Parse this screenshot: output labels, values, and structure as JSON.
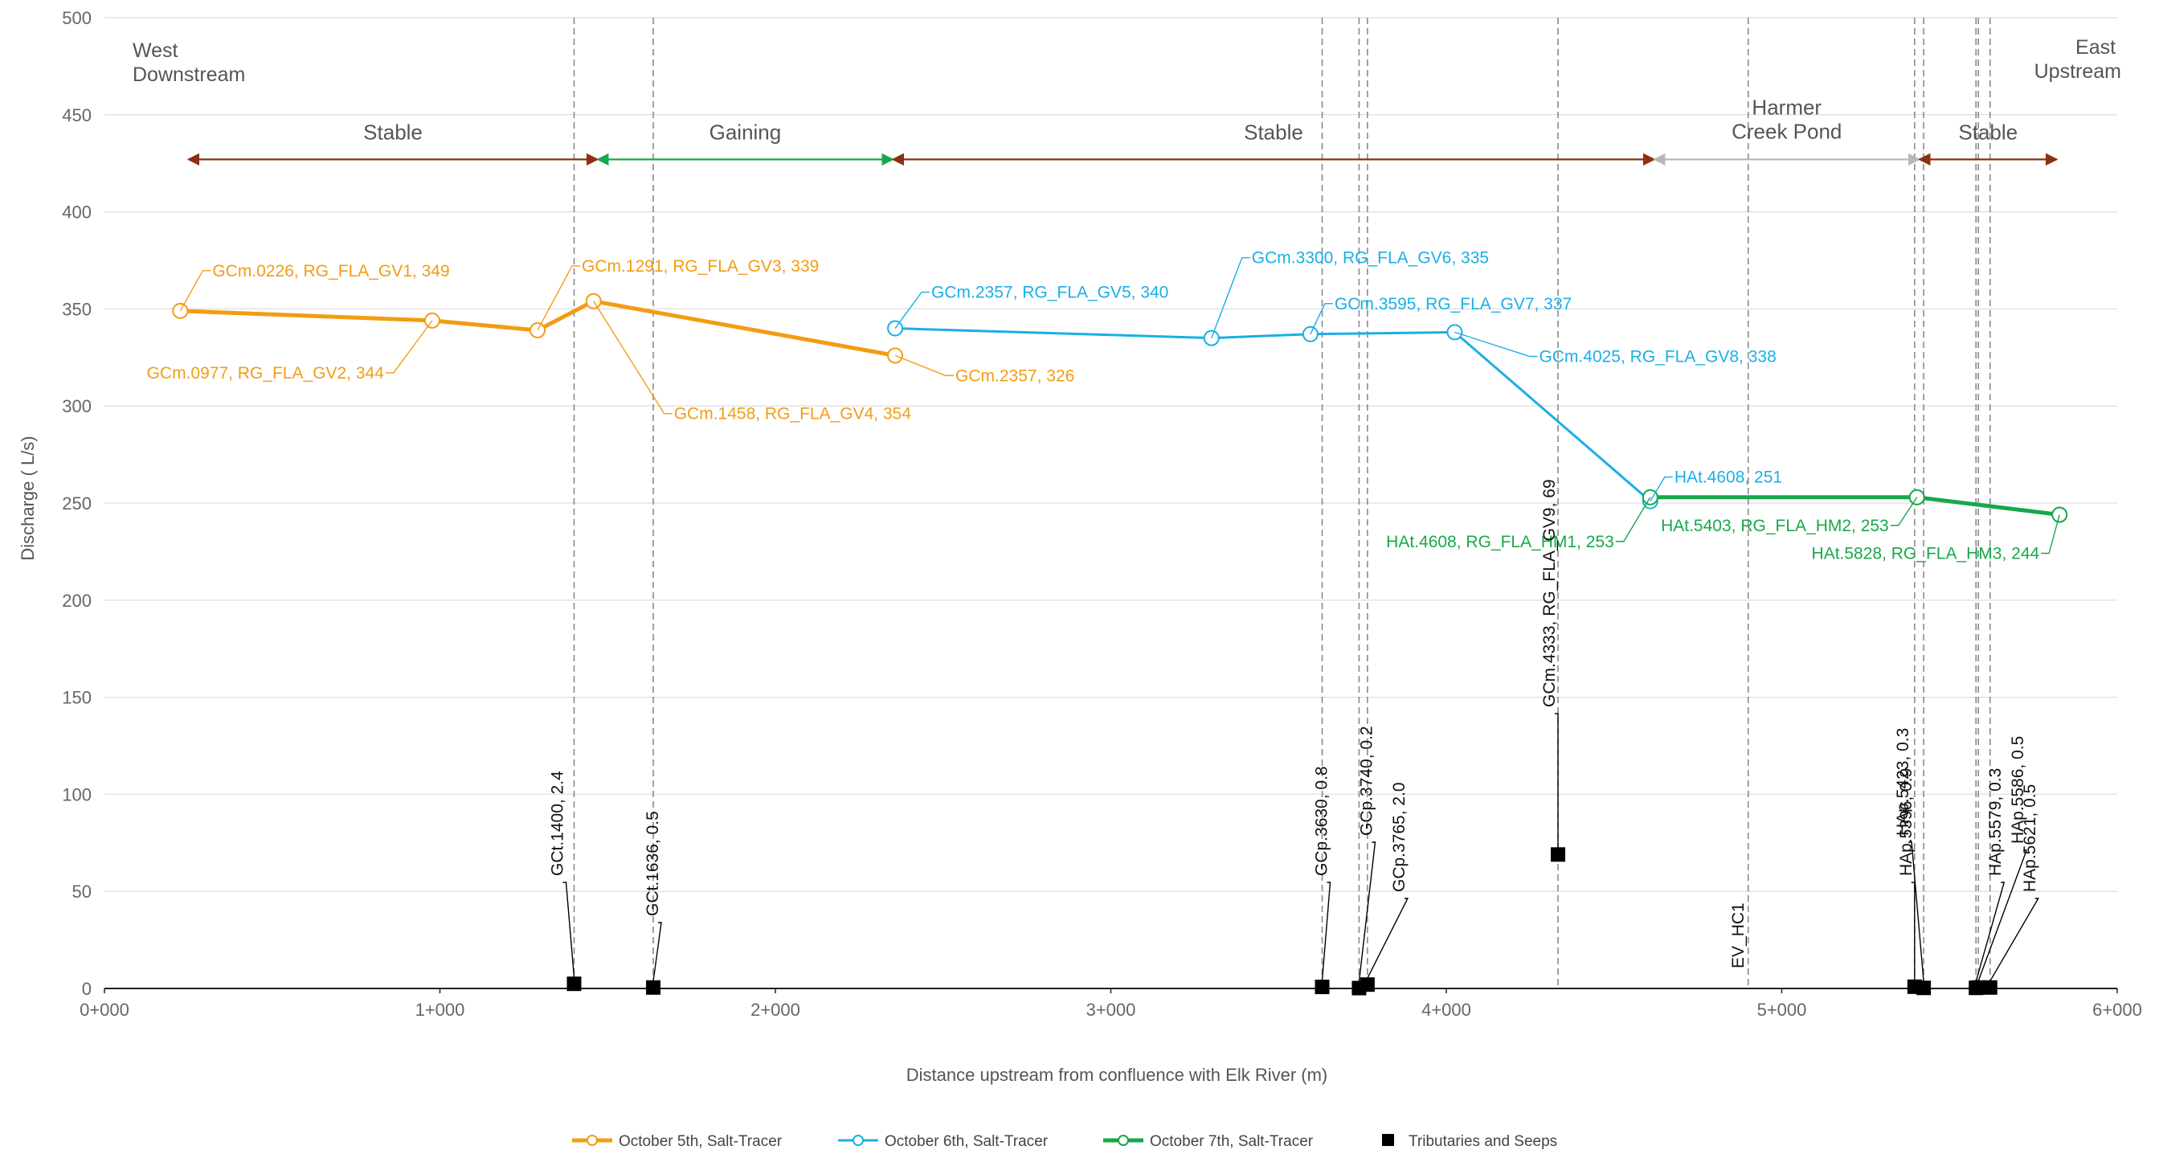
{
  "chart_data": {
    "type": "line",
    "xlabel": "Distance upstream from confluence with Elk River (m)",
    "ylabel": "Discharge ( L/s)",
    "xlim": [
      0,
      6000
    ],
    "ylim": [
      0,
      500
    ],
    "x_ticks": [
      {
        "value": 0,
        "label": "0+000"
      },
      {
        "value": 1000,
        "label": "1+000"
      },
      {
        "value": 2000,
        "label": "2+000"
      },
      {
        "value": 3000,
        "label": "3+000"
      },
      {
        "value": 4000,
        "label": "4+000"
      },
      {
        "value": 5000,
        "label": "5+000"
      },
      {
        "value": 6000,
        "label": "6+000"
      }
    ],
    "y_ticks": [
      0,
      50,
      100,
      150,
      200,
      250,
      300,
      350,
      400,
      450,
      500
    ],
    "grid": "horizontal",
    "legend_position": "bottom",
    "corner_labels": {
      "west": [
        "West",
        "Downstream"
      ],
      "east": [
        "East",
        "Upstream"
      ]
    },
    "colors": {
      "oct5": "#f39c12",
      "oct6": "#1aafe6",
      "oct7": "#17a84a",
      "tributaries": "#000000",
      "stable": "#8b3010",
      "gaining": "#17a84a",
      "pond": "#b8b8b8"
    },
    "series": [
      {
        "name": "October 5th, Salt-Tracer",
        "color": "#f39c12",
        "points": [
          {
            "x": 226,
            "y": 349,
            "label": "GCm.0226, RG_FLA_GV1, 349"
          },
          {
            "x": 977,
            "y": 344,
            "label": "GCm.0977, RG_FLA_GV2, 344"
          },
          {
            "x": 1291,
            "y": 339,
            "label": "GCm.1291, RG_FLA_GV3, 339"
          },
          {
            "x": 1458,
            "y": 354,
            "label": "GCm.1458, RG_FLA_GV4, 354"
          },
          {
            "x": 2357,
            "y": 326,
            "label": "GCm.2357, 326"
          }
        ]
      },
      {
        "name": "October 6th, Salt-Tracer",
        "color": "#1aafe6",
        "points": [
          {
            "x": 2357,
            "y": 340,
            "label": "GCm.2357, RG_FLA_GV5, 340"
          },
          {
            "x": 3300,
            "y": 335,
            "label": "GCm.3300, RG_FLA_GV6, 335"
          },
          {
            "x": 3595,
            "y": 337,
            "label": "GCm.3595, RG_FLA_GV7, 337"
          },
          {
            "x": 4025,
            "y": 338,
            "label": "GCm.4025, RG_FLA_GV8, 338"
          },
          {
            "x": 4608,
            "y": 251,
            "label": "HAt.4608, 251"
          }
        ]
      },
      {
        "name": "October 7th, Salt-Tracer",
        "color": "#17a84a",
        "points": [
          {
            "x": 4608,
            "y": 253,
            "label": "HAt.4608, RG_FLA_HM1, 253"
          },
          {
            "x": 5403,
            "y": 253,
            "label": "HAt.5403, RG_FLA_HM2, 253"
          },
          {
            "x": 5828,
            "y": 244,
            "label": "HAt.5828, RG_FLA_HM3, 244"
          }
        ]
      }
    ],
    "tributaries": {
      "name": "Tributaries and Seeps",
      "points": [
        {
          "x": 1400,
          "y": 2.4,
          "label": "GCt.1400, 2.4"
        },
        {
          "x": 1636,
          "y": 0.5,
          "label": "GCt.1636, 0.5"
        },
        {
          "x": 3630,
          "y": 0.8,
          "label": "GCp.3630, 0.8"
        },
        {
          "x": 3740,
          "y": 0.2,
          "label": "GCp.3740, 0.2"
        },
        {
          "x": 3765,
          "y": 2.0,
          "label": "GCp.3765, 2.0"
        },
        {
          "x": 4333,
          "y": 69,
          "label": "GCm.4333, RG_FLA_GV9, 69"
        },
        {
          "x": 5396,
          "y": 0.9,
          "label": "HAp.5396, 0.9"
        },
        {
          "x": 5423,
          "y": 0.3,
          "label": "HAp.5423, 0.3"
        },
        {
          "x": 5579,
          "y": 0.3,
          "label": "HAp.5579, 0.3"
        },
        {
          "x": 5586,
          "y": 0.5,
          "label": "HAp.5586, 0.5"
        },
        {
          "x": 5621,
          "y": 0.5,
          "label": "HAp.5621, 0.5"
        }
      ]
    },
    "other_markers": [
      {
        "x": 4900,
        "label": "EV_HC1"
      }
    ],
    "reaches": [
      {
        "label": "Stable",
        "from": 250,
        "to": 1470,
        "color": "#8b3010"
      },
      {
        "label": "Gaining",
        "from": 1470,
        "to": 2350,
        "color": "#17a84a"
      },
      {
        "label": "Stable",
        "from": 2350,
        "to": 4620,
        "color": "#8b3010"
      },
      {
        "label": "Harmer Creek Pond",
        "from": 4620,
        "to": 5410,
        "color": "#b8b8b8"
      },
      {
        "label": "Stable",
        "from": 5410,
        "to": 5820,
        "color": "#8b3010"
      }
    ],
    "reference_lines": [
      1400,
      1636,
      3630,
      3740,
      3765,
      4333,
      4900,
      5396,
      5423,
      5579,
      5586,
      5621
    ]
  }
}
